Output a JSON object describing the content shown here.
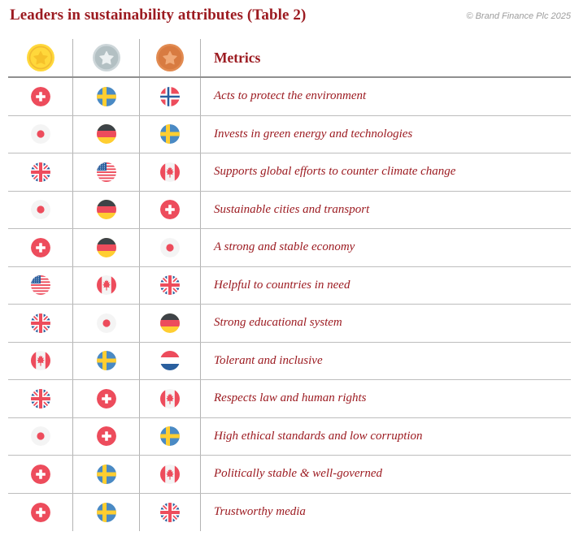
{
  "page": {
    "title": "Leaders in sustainability attributes (Table 2)",
    "copyright": "© Brand Finance Plc 2025"
  },
  "table": {
    "metrics_header": "Metrics",
    "rank_icons": [
      {
        "id": "gold",
        "icon": "gold-medal-icon"
      },
      {
        "id": "silver",
        "icon": "silver-medal-icon"
      },
      {
        "id": "bronze",
        "icon": "bronze-medal-icon"
      }
    ],
    "rows": [
      {
        "gold": "switzerland",
        "silver": "sweden",
        "bronze": "norway",
        "metric": "Acts to protect the environment"
      },
      {
        "gold": "japan",
        "silver": "germany",
        "bronze": "sweden",
        "metric": "Invests in green energy and technologies"
      },
      {
        "gold": "united-kingdom",
        "silver": "united-states",
        "bronze": "canada",
        "metric": "Supports global efforts to counter climate change"
      },
      {
        "gold": "japan",
        "silver": "germany",
        "bronze": "switzerland",
        "metric": "Sustainable cities and transport"
      },
      {
        "gold": "switzerland",
        "silver": "germany",
        "bronze": "japan",
        "metric": "A strong and stable economy"
      },
      {
        "gold": "united-states",
        "silver": "canada",
        "bronze": "united-kingdom",
        "metric": "Helpful to countries in need"
      },
      {
        "gold": "united-kingdom",
        "silver": "japan",
        "bronze": "germany",
        "metric": "Strong educational system"
      },
      {
        "gold": "canada",
        "silver": "sweden",
        "bronze": "netherlands",
        "metric": "Tolerant and inclusive"
      },
      {
        "gold": "united-kingdom",
        "silver": "switzerland",
        "bronze": "canada",
        "metric": "Respects law and human rights"
      },
      {
        "gold": "japan",
        "silver": "switzerland",
        "bronze": "sweden",
        "metric": "High ethical standards and low corruption"
      },
      {
        "gold": "switzerland",
        "silver": "sweden",
        "bronze": "canada",
        "metric": "Politically stable & well-governed"
      },
      {
        "gold": "switzerland",
        "silver": "sweden",
        "bronze": "united-kingdom",
        "metric": "Trustworthy media"
      }
    ]
  },
  "chart_data": {
    "type": "table",
    "title": "Leaders in sustainability attributes (Table 2)",
    "columns": [
      "1st (gold medal)",
      "2nd (silver medal)",
      "3rd (bronze medal)",
      "Metrics"
    ],
    "rows": [
      [
        "Switzerland",
        "Sweden",
        "Norway",
        "Acts to protect the environment"
      ],
      [
        "Japan",
        "Germany",
        "Sweden",
        "Invests in green energy and technologies"
      ],
      [
        "United Kingdom",
        "United States",
        "Canada",
        "Supports global efforts to counter climate change"
      ],
      [
        "Japan",
        "Germany",
        "Switzerland",
        "Sustainable cities and transport"
      ],
      [
        "Switzerland",
        "Germany",
        "Japan",
        "A strong and stable economy"
      ],
      [
        "United States",
        "Canada",
        "United Kingdom",
        "Helpful to countries in need"
      ],
      [
        "United Kingdom",
        "Japan",
        "Germany",
        "Strong educational system"
      ],
      [
        "Canada",
        "Sweden",
        "Netherlands",
        "Tolerant and inclusive"
      ],
      [
        "United Kingdom",
        "Switzerland",
        "Canada",
        "Respects law and human rights"
      ],
      [
        "Japan",
        "Switzerland",
        "Sweden",
        "High ethical standards and low corruption"
      ],
      [
        "Switzerland",
        "Sweden",
        "Canada",
        "Politically stable & well-governed"
      ],
      [
        "Switzerland",
        "Sweden",
        "United Kingdom",
        "Trustworthy media"
      ]
    ],
    "notes": "Rank columns are shown as gold/silver/bronze medal icons; countries are shown as circular flag icons"
  },
  "colors": {
    "accent_red": "#9C1B21",
    "flag_red": "#ED4C5C",
    "flag_navy": "#2A5F9E",
    "sweden_blue": "#4A8AC4",
    "flag_yellow": "#FFCE31",
    "germany_black": "#3E4347",
    "flag_white_bg": "#F4F4F4",
    "gold": "#FFD83B",
    "gold_dark": "#F2BC31",
    "gold_star": "#F6C12A",
    "silver_light": "#CDD6D9",
    "silver_dark": "#B3C0C3",
    "silver_star": "#ECF0F1",
    "bronze_light": "#E28B51",
    "bronze_dark": "#D87B41",
    "bronze_star": "#F0A977"
  }
}
